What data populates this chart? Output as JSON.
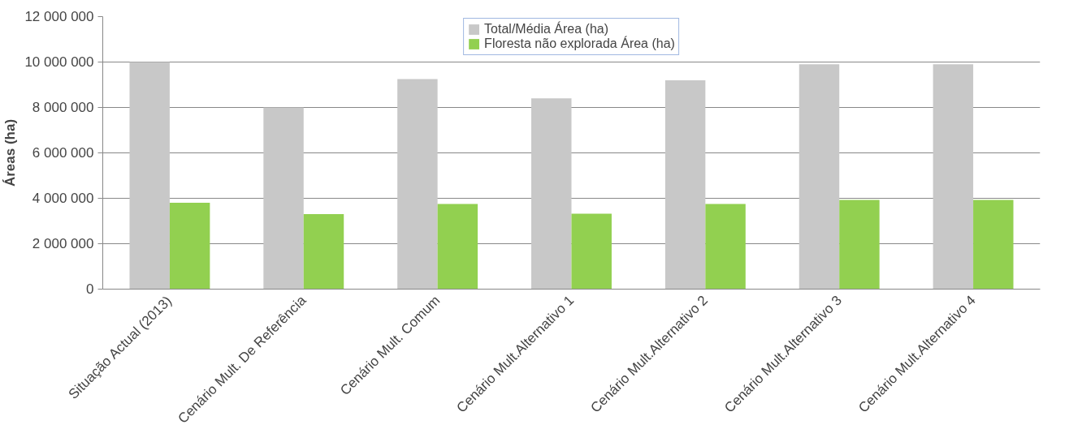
{
  "chart_data": {
    "type": "bar",
    "ylabel": "Áreas (ha)",
    "categories": [
      "Situação Actual (2013)",
      "Cenário Mult. De Referência",
      "Cenário Mult. Comum",
      "Cenário Mult.Alternativo 1",
      "Cenário Mult.Alternativo 2",
      "Cenário Mult.Alternativo 3",
      "Cenário Mult.Alternativo 4"
    ],
    "series": [
      {
        "name": "Total/Média Área (ha)",
        "color": "#c8c8c8",
        "values": [
          10000000,
          8000000,
          9250000,
          8400000,
          9200000,
          9900000,
          9900000
        ]
      },
      {
        "name": "Floresta não explorada Área (ha)",
        "color": "#92d050",
        "values": [
          3800000,
          3300000,
          3750000,
          3320000,
          3750000,
          3930000,
          3930000
        ]
      }
    ],
    "ylim": [
      0,
      12000000
    ],
    "yticks": [
      {
        "value": 0,
        "label": "0"
      },
      {
        "value": 2000000,
        "label": "2 000 000"
      },
      {
        "value": 4000000,
        "label": "4 000 000"
      },
      {
        "value": 6000000,
        "label": "6 000 000"
      },
      {
        "value": 8000000,
        "label": "8 000 000"
      },
      {
        "value": 10000000,
        "label": "10 000 000"
      },
      {
        "value": 12000000,
        "label": "12 000 000"
      }
    ],
    "grid": "y",
    "legend": "top"
  }
}
